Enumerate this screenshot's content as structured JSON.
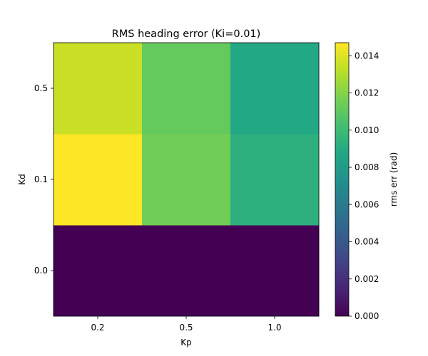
{
  "chart_data": {
    "type": "heatmap",
    "title": "RMS heading error (Ki=0.01)",
    "xlabel": "Kp",
    "ylabel": "Kd",
    "x_categories": [
      "0.2",
      "0.5",
      "1.0"
    ],
    "y_categories": [
      "0.0",
      "0.1",
      "0.5"
    ],
    "values": [
      [
        0.0,
        0.0,
        0.0
      ],
      [
        0.0147,
        0.0115,
        0.0093
      ],
      [
        0.0135,
        0.0112,
        0.0088
      ]
    ],
    "colorbar": {
      "label": "rms err (rad)",
      "range": [
        0.0,
        0.0147
      ],
      "ticks": [
        "0.000",
        "0.002",
        "0.004",
        "0.006",
        "0.008",
        "0.010",
        "0.012",
        "0.014"
      ],
      "tick_values": [
        0.0,
        0.002,
        0.004,
        0.006,
        0.008,
        0.01,
        0.012,
        0.014
      ]
    },
    "colormap": "viridis"
  }
}
